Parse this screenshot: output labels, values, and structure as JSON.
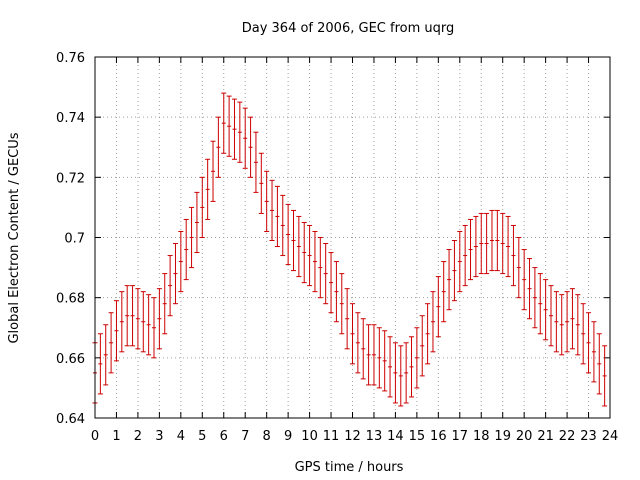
{
  "chart_data": {
    "type": "scatter",
    "title": "Day 364 of 2006, GEC from uqrg",
    "xlabel": "GPS time / hours",
    "ylabel": "Global Electron Content / GECUs",
    "xlim": [
      0,
      24
    ],
    "ylim": [
      0.64,
      0.76
    ],
    "grid": true,
    "x_ticks": [
      "0",
      "1",
      "2",
      "3",
      "4",
      "5",
      "6",
      "7",
      "8",
      "9",
      "10",
      "11",
      "12",
      "13",
      "14",
      "15",
      "16",
      "17",
      "18",
      "19",
      "20",
      "21",
      "22",
      "23",
      "24"
    ],
    "y_ticks": [
      "0.64",
      "0.66",
      "0.68",
      "0.7",
      "0.72",
      "0.74",
      "0.76"
    ],
    "error_bar_color": "#cc0000",
    "series": [
      {
        "points": [
          {
            "x": 0.0,
            "y": 0.655,
            "err": 0.01
          },
          {
            "x": 0.25,
            "y": 0.658,
            "err": 0.01
          },
          {
            "x": 0.5,
            "y": 0.661,
            "err": 0.01
          },
          {
            "x": 0.75,
            "y": 0.665,
            "err": 0.01
          },
          {
            "x": 1.0,
            "y": 0.669,
            "err": 0.01
          },
          {
            "x": 1.25,
            "y": 0.672,
            "err": 0.01
          },
          {
            "x": 1.5,
            "y": 0.674,
            "err": 0.01
          },
          {
            "x": 1.75,
            "y": 0.674,
            "err": 0.01
          },
          {
            "x": 2.0,
            "y": 0.673,
            "err": 0.01
          },
          {
            "x": 2.25,
            "y": 0.672,
            "err": 0.01
          },
          {
            "x": 2.5,
            "y": 0.671,
            "err": 0.01
          },
          {
            "x": 2.75,
            "y": 0.67,
            "err": 0.01
          },
          {
            "x": 3.0,
            "y": 0.673,
            "err": 0.01
          },
          {
            "x": 3.25,
            "y": 0.678,
            "err": 0.01
          },
          {
            "x": 3.5,
            "y": 0.684,
            "err": 0.01
          },
          {
            "x": 3.75,
            "y": 0.688,
            "err": 0.01
          },
          {
            "x": 4.0,
            "y": 0.692,
            "err": 0.01
          },
          {
            "x": 4.25,
            "y": 0.696,
            "err": 0.01
          },
          {
            "x": 4.5,
            "y": 0.7,
            "err": 0.01
          },
          {
            "x": 4.75,
            "y": 0.705,
            "err": 0.01
          },
          {
            "x": 5.0,
            "y": 0.71,
            "err": 0.01
          },
          {
            "x": 5.25,
            "y": 0.716,
            "err": 0.01
          },
          {
            "x": 5.5,
            "y": 0.722,
            "err": 0.01
          },
          {
            "x": 5.75,
            "y": 0.73,
            "err": 0.01
          },
          {
            "x": 6.0,
            "y": 0.738,
            "err": 0.01
          },
          {
            "x": 6.25,
            "y": 0.737,
            "err": 0.01
          },
          {
            "x": 6.5,
            "y": 0.736,
            "err": 0.01
          },
          {
            "x": 6.75,
            "y": 0.735,
            "err": 0.01
          },
          {
            "x": 7.0,
            "y": 0.733,
            "err": 0.01
          },
          {
            "x": 7.25,
            "y": 0.73,
            "err": 0.01
          },
          {
            "x": 7.5,
            "y": 0.725,
            "err": 0.01
          },
          {
            "x": 7.75,
            "y": 0.718,
            "err": 0.01
          },
          {
            "x": 8.0,
            "y": 0.712,
            "err": 0.01
          },
          {
            "x": 8.25,
            "y": 0.709,
            "err": 0.01
          },
          {
            "x": 8.5,
            "y": 0.707,
            "err": 0.01
          },
          {
            "x": 8.75,
            "y": 0.704,
            "err": 0.01
          },
          {
            "x": 9.0,
            "y": 0.701,
            "err": 0.01
          },
          {
            "x": 9.25,
            "y": 0.699,
            "err": 0.01
          },
          {
            "x": 9.5,
            "y": 0.697,
            "err": 0.01
          },
          {
            "x": 9.75,
            "y": 0.695,
            "err": 0.01
          },
          {
            "x": 10.0,
            "y": 0.694,
            "err": 0.01
          },
          {
            "x": 10.25,
            "y": 0.692,
            "err": 0.01
          },
          {
            "x": 10.5,
            "y": 0.69,
            "err": 0.01
          },
          {
            "x": 10.75,
            "y": 0.688,
            "err": 0.01
          },
          {
            "x": 11.0,
            "y": 0.685,
            "err": 0.01
          },
          {
            "x": 11.25,
            "y": 0.682,
            "err": 0.01
          },
          {
            "x": 11.5,
            "y": 0.678,
            "err": 0.01
          },
          {
            "x": 11.75,
            "y": 0.673,
            "err": 0.01
          },
          {
            "x": 12.0,
            "y": 0.668,
            "err": 0.01
          },
          {
            "x": 12.25,
            "y": 0.665,
            "err": 0.01
          },
          {
            "x": 12.5,
            "y": 0.663,
            "err": 0.01
          },
          {
            "x": 12.75,
            "y": 0.661,
            "err": 0.01
          },
          {
            "x": 13.0,
            "y": 0.661,
            "err": 0.01
          },
          {
            "x": 13.25,
            "y": 0.66,
            "err": 0.01
          },
          {
            "x": 13.5,
            "y": 0.659,
            "err": 0.01
          },
          {
            "x": 13.75,
            "y": 0.657,
            "err": 0.01
          },
          {
            "x": 14.0,
            "y": 0.655,
            "err": 0.01
          },
          {
            "x": 14.25,
            "y": 0.654,
            "err": 0.01
          },
          {
            "x": 14.5,
            "y": 0.655,
            "err": 0.01
          },
          {
            "x": 14.75,
            "y": 0.657,
            "err": 0.01
          },
          {
            "x": 15.0,
            "y": 0.66,
            "err": 0.01
          },
          {
            "x": 15.25,
            "y": 0.664,
            "err": 0.01
          },
          {
            "x": 15.5,
            "y": 0.668,
            "err": 0.01
          },
          {
            "x": 15.75,
            "y": 0.672,
            "err": 0.01
          },
          {
            "x": 16.0,
            "y": 0.677,
            "err": 0.01
          },
          {
            "x": 16.25,
            "y": 0.682,
            "err": 0.01
          },
          {
            "x": 16.5,
            "y": 0.686,
            "err": 0.01
          },
          {
            "x": 16.75,
            "y": 0.689,
            "err": 0.01
          },
          {
            "x": 17.0,
            "y": 0.692,
            "err": 0.01
          },
          {
            "x": 17.25,
            "y": 0.694,
            "err": 0.01
          },
          {
            "x": 17.5,
            "y": 0.696,
            "err": 0.01
          },
          {
            "x": 17.75,
            "y": 0.697,
            "err": 0.01
          },
          {
            "x": 18.0,
            "y": 0.698,
            "err": 0.01
          },
          {
            "x": 18.25,
            "y": 0.698,
            "err": 0.01
          },
          {
            "x": 18.5,
            "y": 0.699,
            "err": 0.01
          },
          {
            "x": 18.75,
            "y": 0.699,
            "err": 0.01
          },
          {
            "x": 19.0,
            "y": 0.698,
            "err": 0.01
          },
          {
            "x": 19.25,
            "y": 0.697,
            "err": 0.01
          },
          {
            "x": 19.5,
            "y": 0.694,
            "err": 0.01
          },
          {
            "x": 19.75,
            "y": 0.69,
            "err": 0.01
          },
          {
            "x": 20.0,
            "y": 0.686,
            "err": 0.01
          },
          {
            "x": 20.25,
            "y": 0.683,
            "err": 0.01
          },
          {
            "x": 20.5,
            "y": 0.68,
            "err": 0.01
          },
          {
            "x": 20.75,
            "y": 0.678,
            "err": 0.01
          },
          {
            "x": 21.0,
            "y": 0.676,
            "err": 0.01
          },
          {
            "x": 21.25,
            "y": 0.674,
            "err": 0.01
          },
          {
            "x": 21.5,
            "y": 0.672,
            "err": 0.01
          },
          {
            "x": 21.75,
            "y": 0.671,
            "err": 0.01
          },
          {
            "x": 22.0,
            "y": 0.672,
            "err": 0.01
          },
          {
            "x": 22.25,
            "y": 0.673,
            "err": 0.01
          },
          {
            "x": 22.5,
            "y": 0.671,
            "err": 0.01
          },
          {
            "x": 22.75,
            "y": 0.668,
            "err": 0.01
          },
          {
            "x": 23.0,
            "y": 0.665,
            "err": 0.01
          },
          {
            "x": 23.25,
            "y": 0.662,
            "err": 0.01
          },
          {
            "x": 23.5,
            "y": 0.658,
            "err": 0.01
          },
          {
            "x": 23.75,
            "y": 0.654,
            "err": 0.01
          }
        ]
      }
    ]
  }
}
